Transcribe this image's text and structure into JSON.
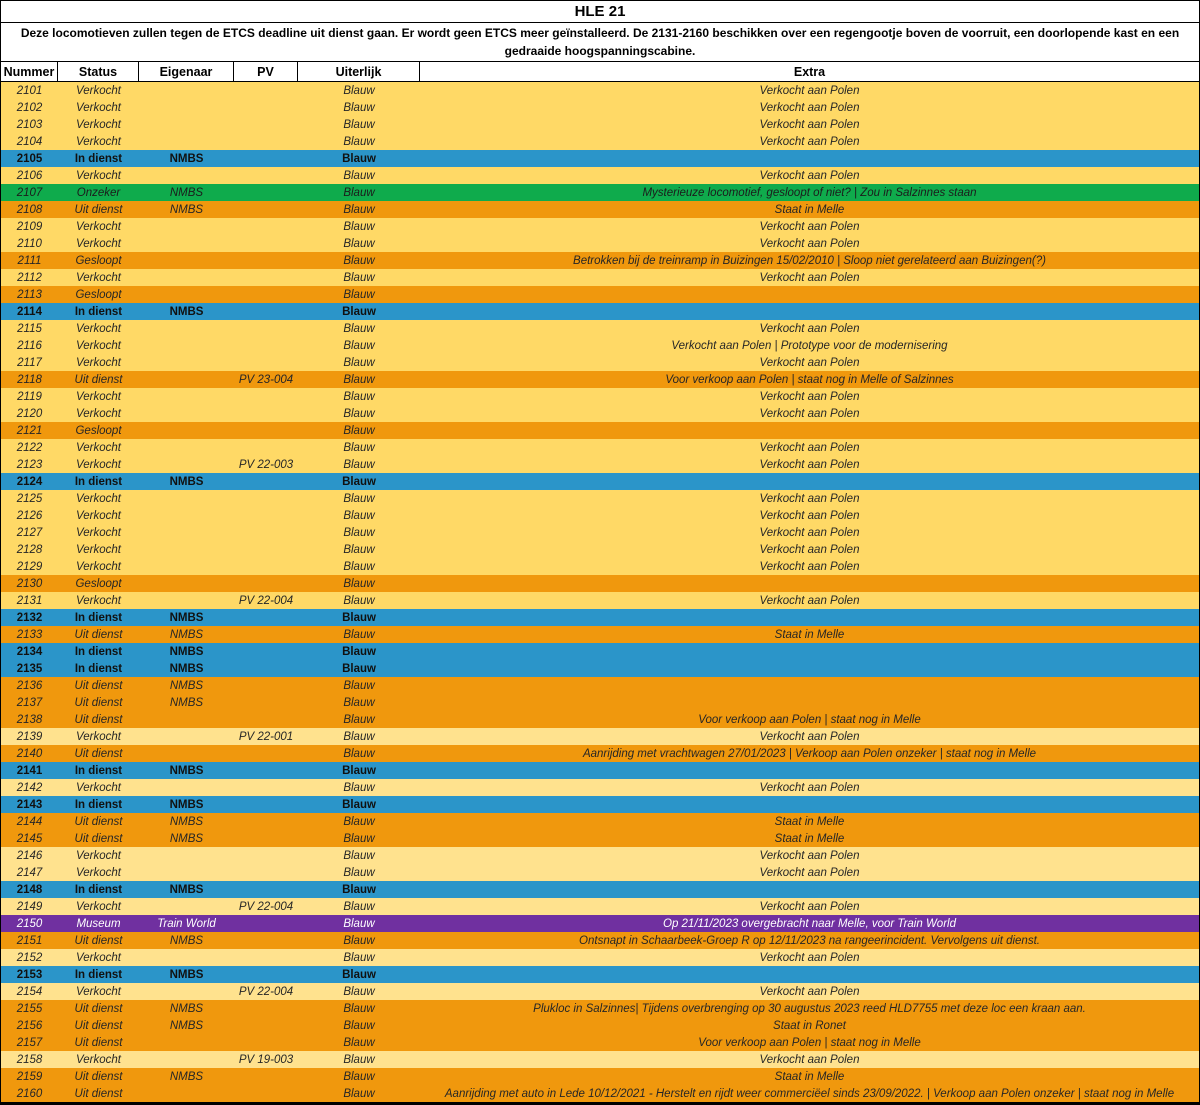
{
  "title": "HLE 21",
  "description": "Deze locomotieven zullen tegen de ETCS deadline uit dienst gaan. Er wordt geen ETCS meer geïnstalleerd. De 2131-2160 beschikken over een regengootje boven de voorruit, een doorlopende kast en een gedraaide hoogspanningscabine.",
  "columns": {
    "nummer": "Nummer",
    "status": "Status",
    "eigenaar": "Eigenaar",
    "pv": "PV",
    "uiterlijk": "Uiterlijk",
    "extra": "Extra"
  },
  "tones": {
    "yellow": {
      "bg": "#FFD966",
      "text": "#262626",
      "bold": false,
      "italic": true
    },
    "yellow_light": {
      "bg": "#FFE28E",
      "text": "#262626",
      "bold": false,
      "italic": true
    },
    "blue": {
      "bg": "#2B95C9",
      "text": "#111111",
      "bold": true,
      "italic": false
    },
    "orange": {
      "bg": "#F0980D",
      "text": "#262626",
      "bold": false,
      "italic": true
    },
    "green": {
      "bg": "#0FAB4C",
      "text": "#1C1C1C",
      "bold": false,
      "italic": true
    },
    "purple": {
      "bg": "#7030A0",
      "text": "#FFFFFF",
      "bold": false,
      "italic": true
    }
  },
  "table": {
    "rows": [
      {
        "number": "2101",
        "status": "Verkocht",
        "eigenaar": "",
        "pv": "",
        "uiterlijk": "Blauw",
        "extra": "Verkocht aan Polen",
        "tone": "yellow"
      },
      {
        "number": "2102",
        "status": "Verkocht",
        "eigenaar": "",
        "pv": "",
        "uiterlijk": "Blauw",
        "extra": "Verkocht aan Polen",
        "tone": "yellow"
      },
      {
        "number": "2103",
        "status": "Verkocht",
        "eigenaar": "",
        "pv": "",
        "uiterlijk": "Blauw",
        "extra": "Verkocht aan Polen",
        "tone": "yellow"
      },
      {
        "number": "2104",
        "status": "Verkocht",
        "eigenaar": "",
        "pv": "",
        "uiterlijk": "Blauw",
        "extra": "Verkocht aan Polen",
        "tone": "yellow"
      },
      {
        "number": "2105",
        "status": "In dienst",
        "eigenaar": "NMBS",
        "pv": "",
        "uiterlijk": "Blauw",
        "extra": "",
        "tone": "blue"
      },
      {
        "number": "2106",
        "status": "Verkocht",
        "eigenaar": "",
        "pv": "",
        "uiterlijk": "Blauw",
        "extra": "Verkocht aan Polen",
        "tone": "yellow"
      },
      {
        "number": "2107",
        "status": "Onzeker",
        "eigenaar": "NMBS",
        "pv": "",
        "uiterlijk": "Blauw",
        "extra": "Mysterieuze locomotief, gesloopt of niet? | Zou in Salzinnes staan",
        "tone": "green"
      },
      {
        "number": "2108",
        "status": "Uit dienst",
        "eigenaar": "NMBS",
        "pv": "",
        "uiterlijk": "Blauw",
        "extra": "Staat in Melle",
        "tone": "orange"
      },
      {
        "number": "2109",
        "status": "Verkocht",
        "eigenaar": "",
        "pv": "",
        "uiterlijk": "Blauw",
        "extra": "Verkocht aan Polen",
        "tone": "yellow"
      },
      {
        "number": "2110",
        "status": "Verkocht",
        "eigenaar": "",
        "pv": "",
        "uiterlijk": "Blauw",
        "extra": "Verkocht aan Polen",
        "tone": "yellow"
      },
      {
        "number": "2111",
        "status": "Gesloopt",
        "eigenaar": "",
        "pv": "",
        "uiterlijk": "Blauw",
        "extra": "Betrokken bij de treinramp in Buizingen 15/02/2010 | Sloop niet gerelateerd aan Buizingen(?)",
        "tone": "orange"
      },
      {
        "number": "2112",
        "status": "Verkocht",
        "eigenaar": "",
        "pv": "",
        "uiterlijk": "Blauw",
        "extra": "Verkocht aan Polen",
        "tone": "yellow"
      },
      {
        "number": "2113",
        "status": "Gesloopt",
        "eigenaar": "",
        "pv": "",
        "uiterlijk": "Blauw",
        "extra": "",
        "tone": "orange"
      },
      {
        "number": "2114",
        "status": "In dienst",
        "eigenaar": "NMBS",
        "pv": "",
        "uiterlijk": "Blauw",
        "extra": "",
        "tone": "blue"
      },
      {
        "number": "2115",
        "status": "Verkocht",
        "eigenaar": "",
        "pv": "",
        "uiterlijk": "Blauw",
        "extra": "Verkocht aan Polen",
        "tone": "yellow"
      },
      {
        "number": "2116",
        "status": "Verkocht",
        "eigenaar": "",
        "pv": "",
        "uiterlijk": "Blauw",
        "extra": "Verkocht aan Polen | Prototype voor de modernisering",
        "tone": "yellow"
      },
      {
        "number": "2117",
        "status": "Verkocht",
        "eigenaar": "",
        "pv": "",
        "uiterlijk": "Blauw",
        "extra": "Verkocht aan Polen",
        "tone": "yellow"
      },
      {
        "number": "2118",
        "status": "Uit dienst",
        "eigenaar": "",
        "pv": "PV 23-004",
        "uiterlijk": "Blauw",
        "extra": "Voor verkoop aan Polen | staat nog in Melle of Salzinnes",
        "tone": "orange"
      },
      {
        "number": "2119",
        "status": "Verkocht",
        "eigenaar": "",
        "pv": "",
        "uiterlijk": "Blauw",
        "extra": "Verkocht aan Polen",
        "tone": "yellow"
      },
      {
        "number": "2120",
        "status": "Verkocht",
        "eigenaar": "",
        "pv": "",
        "uiterlijk": "Blauw",
        "extra": "Verkocht aan Polen",
        "tone": "yellow"
      },
      {
        "number": "2121",
        "status": "Gesloopt",
        "eigenaar": "",
        "pv": "",
        "uiterlijk": "Blauw",
        "extra": "",
        "tone": "orange"
      },
      {
        "number": "2122",
        "status": "Verkocht",
        "eigenaar": "",
        "pv": "",
        "uiterlijk": "Blauw",
        "extra": "Verkocht aan Polen",
        "tone": "yellow"
      },
      {
        "number": "2123",
        "status": "Verkocht",
        "eigenaar": "",
        "pv": "PV 22-003",
        "uiterlijk": "Blauw",
        "extra": "Verkocht aan Polen",
        "tone": "yellow"
      },
      {
        "number": "2124",
        "status": "In dienst",
        "eigenaar": "NMBS",
        "pv": "",
        "uiterlijk": "Blauw",
        "extra": "",
        "tone": "blue"
      },
      {
        "number": "2125",
        "status": "Verkocht",
        "eigenaar": "",
        "pv": "",
        "uiterlijk": "Blauw",
        "extra": "Verkocht aan Polen",
        "tone": "yellow"
      },
      {
        "number": "2126",
        "status": "Verkocht",
        "eigenaar": "",
        "pv": "",
        "uiterlijk": "Blauw",
        "extra": "Verkocht aan Polen",
        "tone": "yellow"
      },
      {
        "number": "2127",
        "status": "Verkocht",
        "eigenaar": "",
        "pv": "",
        "uiterlijk": "Blauw",
        "extra": "Verkocht aan Polen",
        "tone": "yellow"
      },
      {
        "number": "2128",
        "status": "Verkocht",
        "eigenaar": "",
        "pv": "",
        "uiterlijk": "Blauw",
        "extra": "Verkocht aan Polen",
        "tone": "yellow"
      },
      {
        "number": "2129",
        "status": "Verkocht",
        "eigenaar": "",
        "pv": "",
        "uiterlijk": "Blauw",
        "extra": "Verkocht aan Polen",
        "tone": "yellow"
      },
      {
        "number": "2130",
        "status": "Gesloopt",
        "eigenaar": "",
        "pv": "",
        "uiterlijk": "Blauw",
        "extra": "",
        "tone": "orange"
      },
      {
        "number": "2131",
        "status": "Verkocht",
        "eigenaar": "",
        "pv": "PV 22-004",
        "uiterlijk": "Blauw",
        "extra": "Verkocht aan Polen",
        "tone": "yellow"
      },
      {
        "number": "2132",
        "status": "In dienst",
        "eigenaar": "NMBS",
        "pv": "",
        "uiterlijk": "Blauw",
        "extra": "",
        "tone": "blue"
      },
      {
        "number": "2133",
        "status": "Uit dienst",
        "eigenaar": "NMBS",
        "pv": "",
        "uiterlijk": "Blauw",
        "extra": "Staat in Melle",
        "tone": "orange"
      },
      {
        "number": "2134",
        "status": "In dienst",
        "eigenaar": "NMBS",
        "pv": "",
        "uiterlijk": "Blauw",
        "extra": "",
        "tone": "blue"
      },
      {
        "number": "2135",
        "status": "In dienst",
        "eigenaar": "NMBS",
        "pv": "",
        "uiterlijk": "Blauw",
        "extra": "",
        "tone": "blue"
      },
      {
        "number": "2136",
        "status": "Uit dienst",
        "eigenaar": "NMBS",
        "pv": "",
        "uiterlijk": "Blauw",
        "extra": "",
        "tone": "orange"
      },
      {
        "number": "2137",
        "status": "Uit dienst",
        "eigenaar": "NMBS",
        "pv": "",
        "uiterlijk": "Blauw",
        "extra": "",
        "tone": "orange"
      },
      {
        "number": "2138",
        "status": "Uit dienst",
        "eigenaar": "",
        "pv": "",
        "uiterlijk": "Blauw",
        "extra": "Voor verkoop aan Polen | staat nog in Melle",
        "tone": "orange"
      },
      {
        "number": "2139",
        "status": "Verkocht",
        "eigenaar": "",
        "pv": "PV 22-001",
        "uiterlijk": "Blauw",
        "extra": "Verkocht aan Polen",
        "tone": "yellow_light"
      },
      {
        "number": "2140",
        "status": "Uit dienst",
        "eigenaar": "",
        "pv": "",
        "uiterlijk": "Blauw",
        "extra": "Aanrijding met vrachtwagen 27/01/2023 | Verkoop aan Polen onzeker | staat nog in Melle",
        "tone": "orange"
      },
      {
        "number": "2141",
        "status": "In dienst",
        "eigenaar": "NMBS",
        "pv": "",
        "uiterlijk": "Blauw",
        "extra": "",
        "tone": "blue"
      },
      {
        "number": "2142",
        "status": "Verkocht",
        "eigenaar": "",
        "pv": "",
        "uiterlijk": "Blauw",
        "extra": "Verkocht aan Polen",
        "tone": "yellow_light"
      },
      {
        "number": "2143",
        "status": "In dienst",
        "eigenaar": "NMBS",
        "pv": "",
        "uiterlijk": "Blauw",
        "extra": "",
        "tone": "blue"
      },
      {
        "number": "2144",
        "status": "Uit dienst",
        "eigenaar": "NMBS",
        "pv": "",
        "uiterlijk": "Blauw",
        "extra": "Staat in Melle",
        "tone": "orange"
      },
      {
        "number": "2145",
        "status": "Uit dienst",
        "eigenaar": "NMBS",
        "pv": "",
        "uiterlijk": "Blauw",
        "extra": "Staat in Melle",
        "tone": "orange"
      },
      {
        "number": "2146",
        "status": "Verkocht",
        "eigenaar": "",
        "pv": "",
        "uiterlijk": "Blauw",
        "extra": "Verkocht aan Polen",
        "tone": "yellow_light"
      },
      {
        "number": "2147",
        "status": "Verkocht",
        "eigenaar": "",
        "pv": "",
        "uiterlijk": "Blauw",
        "extra": "Verkocht aan Polen",
        "tone": "yellow_light"
      },
      {
        "number": "2148",
        "status": "In dienst",
        "eigenaar": "NMBS",
        "pv": "",
        "uiterlijk": "Blauw",
        "extra": "",
        "tone": "blue"
      },
      {
        "number": "2149",
        "status": "Verkocht",
        "eigenaar": "",
        "pv": "PV 22-004",
        "uiterlijk": "Blauw",
        "extra": "Verkocht aan Polen",
        "tone": "yellow_light"
      },
      {
        "number": "2150",
        "status": "Museum",
        "eigenaar": "Train World",
        "pv": "",
        "uiterlijk": "Blauw",
        "extra": "Op 21/11/2023 overgebracht naar Melle, voor Train World",
        "tone": "purple"
      },
      {
        "number": "2151",
        "status": "Uit dienst",
        "eigenaar": "NMBS",
        "pv": "",
        "uiterlijk": "Blauw",
        "extra": "Ontsnapt in Schaarbeek-Groep R op 12/11/2023 na rangeerincident. Vervolgens uit dienst.",
        "tone": "orange"
      },
      {
        "number": "2152",
        "status": "Verkocht",
        "eigenaar": "",
        "pv": "",
        "uiterlijk": "Blauw",
        "extra": "Verkocht aan Polen",
        "tone": "yellow_light"
      },
      {
        "number": "2153",
        "status": "In dienst",
        "eigenaar": "NMBS",
        "pv": "",
        "uiterlijk": "Blauw",
        "extra": "",
        "tone": "blue"
      },
      {
        "number": "2154",
        "status": "Verkocht",
        "eigenaar": "",
        "pv": "PV 22-004",
        "uiterlijk": "Blauw",
        "extra": "Verkocht aan Polen",
        "tone": "yellow_light"
      },
      {
        "number": "2155",
        "status": "Uit dienst",
        "eigenaar": "NMBS",
        "pv": "",
        "uiterlijk": "Blauw",
        "extra": "Plukloc in Salzinnes| Tijdens overbrenging op 30 augustus 2023 reed HLD7755 met deze loc een kraan aan.",
        "tone": "orange"
      },
      {
        "number": "2156",
        "status": "Uit dienst",
        "eigenaar": "NMBS",
        "pv": "",
        "uiterlijk": "Blauw",
        "extra": "Staat in Ronet",
        "tone": "orange"
      },
      {
        "number": "2157",
        "status": "Uit dienst",
        "eigenaar": "",
        "pv": "",
        "uiterlijk": "Blauw",
        "extra": "Voor verkoop aan Polen | staat nog in Melle",
        "tone": "orange"
      },
      {
        "number": "2158",
        "status": "Verkocht",
        "eigenaar": "",
        "pv": "PV 19-003",
        "uiterlijk": "Blauw",
        "extra": "Verkocht aan Polen",
        "tone": "yellow_light"
      },
      {
        "number": "2159",
        "status": "Uit dienst",
        "eigenaar": "NMBS",
        "pv": "",
        "uiterlijk": "Blauw",
        "extra": "Staat in Melle",
        "tone": "orange"
      },
      {
        "number": "2160",
        "status": "Uit dienst",
        "eigenaar": "",
        "pv": "",
        "uiterlijk": "Blauw",
        "extra": "Aanrijding met auto in Lede 10/12/2021 - Herstelt en rijdt weer commerciëel sinds 23/09/2022. | Verkoop aan Polen onzeker | staat nog in Melle",
        "tone": "orange"
      }
    ]
  }
}
